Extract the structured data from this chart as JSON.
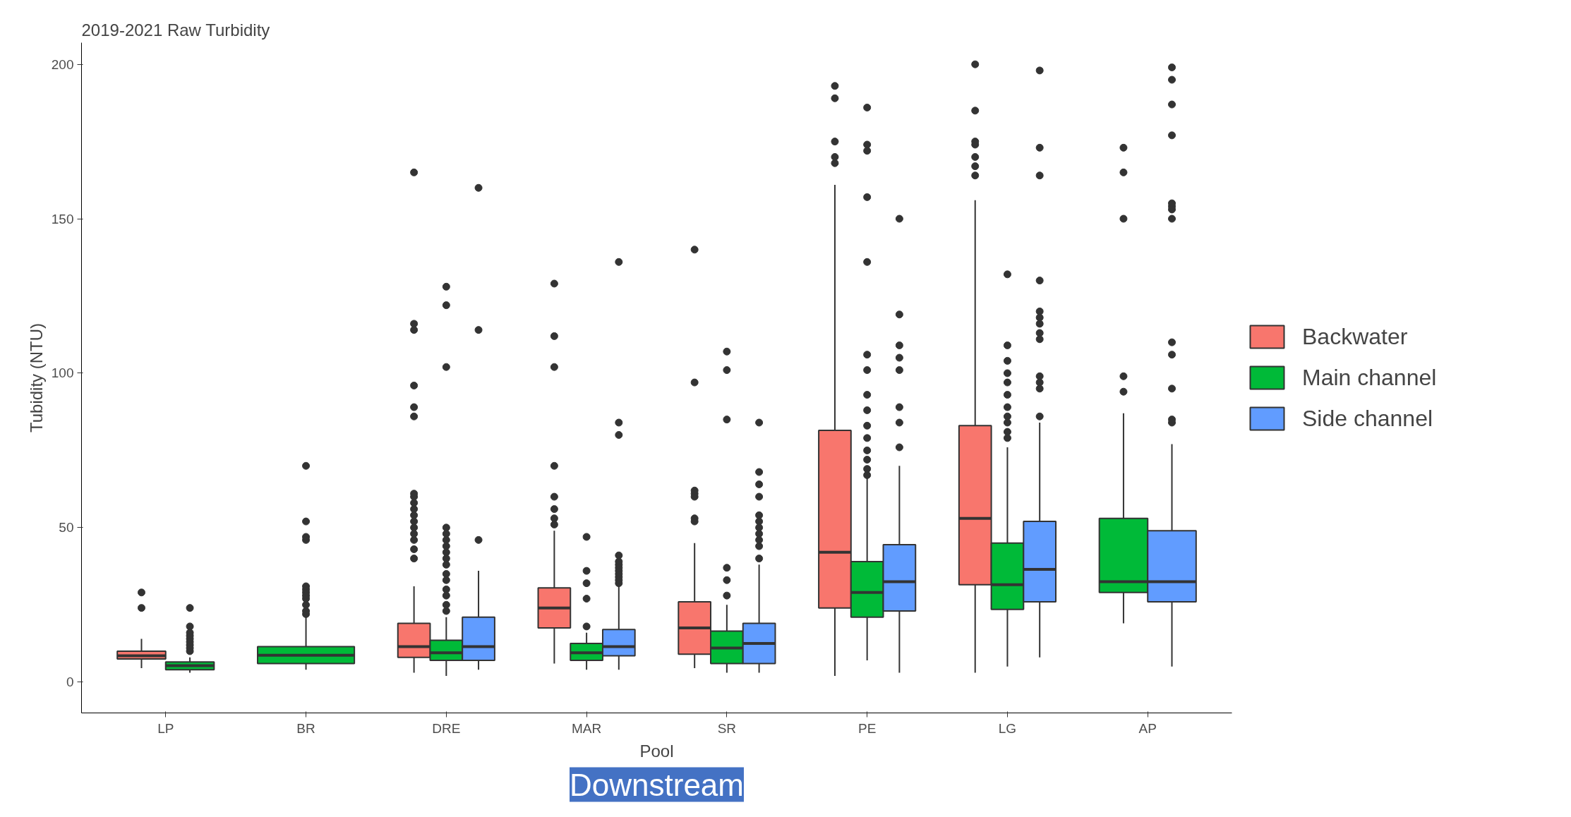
{
  "chart_data": {
    "type": "box",
    "title": "2019-2021 Raw Turbidity",
    "xlabel": "Pool",
    "ylabel": "Tubidity (NTU)",
    "categories": [
      "LP",
      "BR",
      "DRE",
      "MAR",
      "SR",
      "PE",
      "LG",
      "AP"
    ],
    "ylim": [
      -10,
      207
    ],
    "yticks": [
      0,
      50,
      100,
      150,
      200
    ],
    "grid": false,
    "legend": "right",
    "annotations": [
      "Downstream"
    ],
    "series": [
      {
        "name": "Backwater",
        "color": "#f8766d",
        "boxes": [
          {
            "low": 4.5,
            "q1": 7.5,
            "median": 8.5,
            "q3": 10,
            "high": 14,
            "outliers": [
              24,
              29
            ]
          },
          null,
          {
            "low": 3,
            "q1": 8,
            "median": 11.5,
            "q3": 19,
            "high": 31,
            "outliers": [
              40,
              43,
              46,
              48,
              50,
              52,
              54,
              56,
              58,
              60,
              61,
              86,
              89,
              96,
              114,
              116,
              165
            ]
          },
          {
            "low": 6,
            "q1": 17.5,
            "median": 24,
            "q3": 30.5,
            "high": 49,
            "outliers": [
              51,
              53,
              56,
              60,
              70,
              102,
              112,
              129
            ]
          },
          {
            "low": 4.5,
            "q1": 9,
            "median": 17.5,
            "q3": 26,
            "high": 45,
            "outliers": [
              52,
              53,
              60,
              61,
              62,
              97,
              140
            ]
          },
          {
            "low": 2,
            "q1": 24,
            "median": 42,
            "q3": 81.5,
            "high": 161,
            "outliers": [
              168,
              170,
              175,
              189,
              193
            ]
          },
          {
            "low": 3,
            "q1": 31.5,
            "median": 53,
            "q3": 83,
            "high": 156,
            "outliers": [
              164,
              167,
              170,
              174,
              175,
              185,
              200
            ]
          },
          null
        ]
      },
      {
        "name": "Main channel",
        "color": "#00ba38",
        "boxes": [
          {
            "low": 3,
            "q1": 4,
            "median": 5.3,
            "q3": 6.5,
            "high": 8,
            "outliers": [
              10,
              11,
              12,
              13,
              14,
              15,
              16,
              18,
              24
            ]
          },
          {
            "low": 4,
            "q1": 6,
            "median": 8.7,
            "q3": 11.5,
            "high": 21,
            "outliers": [
              22,
              23,
              25,
              27,
              28,
              29,
              30,
              31,
              46,
              47,
              52,
              70
            ]
          },
          {
            "low": 2,
            "q1": 7,
            "median": 9.5,
            "q3": 13.5,
            "high": 21,
            "outliers": [
              23,
              25,
              28,
              30,
              33,
              35,
              38,
              40,
              42,
              44,
              46,
              48,
              50,
              102,
              122,
              128
            ]
          },
          {
            "low": 4,
            "q1": 7,
            "median": 9.5,
            "q3": 12.5,
            "high": 16,
            "outliers": [
              18,
              27,
              32,
              36,
              47
            ]
          },
          {
            "low": 3,
            "q1": 6,
            "median": 11,
            "q3": 16.5,
            "high": 25,
            "outliers": [
              28,
              33,
              37,
              85,
              101,
              107
            ]
          },
          {
            "low": 7,
            "q1": 21,
            "median": 29,
            "q3": 39,
            "high": 66,
            "outliers": [
              67,
              69,
              72,
              75,
              79,
              83,
              88,
              93,
              101,
              106,
              136,
              157,
              172,
              174,
              186
            ]
          },
          {
            "low": 5,
            "q1": 23.5,
            "median": 31.5,
            "q3": 45,
            "high": 76,
            "outliers": [
              79,
              81,
              84,
              86,
              89,
              93,
              97,
              100,
              104,
              109,
              132
            ]
          },
          {
            "low": 19,
            "q1": 29,
            "median": 32.5,
            "q3": 53,
            "high": 87,
            "outliers": [
              94,
              99,
              150,
              165,
              173
            ]
          }
        ]
      },
      {
        "name": "Side channel",
        "color": "#619cff",
        "boxes": [
          null,
          null,
          {
            "low": 4,
            "q1": 7,
            "median": 11.5,
            "q3": 21,
            "high": 36,
            "outliers": [
              46,
              114,
              160
            ]
          },
          {
            "low": 4,
            "q1": 8.5,
            "median": 11.5,
            "q3": 17,
            "high": 31,
            "outliers": [
              32,
              33,
              34,
              35,
              36,
              37,
              38,
              39,
              41,
              80,
              84,
              136
            ]
          },
          {
            "low": 3,
            "q1": 6,
            "median": 12.5,
            "q3": 19,
            "high": 38,
            "outliers": [
              40,
              44,
              46,
              48,
              50,
              52,
              54,
              60,
              64,
              68,
              84
            ]
          },
          {
            "low": 3,
            "q1": 23,
            "median": 32.5,
            "q3": 44.5,
            "high": 70,
            "outliers": [
              76,
              84,
              89,
              101,
              105,
              109,
              119,
              150
            ]
          },
          {
            "low": 8,
            "q1": 26,
            "median": 36.5,
            "q3": 52,
            "high": 84,
            "outliers": [
              86,
              95,
              97,
              99,
              111,
              113,
              116,
              118,
              120,
              130,
              164,
              173,
              198
            ]
          },
          {
            "low": 5,
            "q1": 26,
            "median": 32.5,
            "q3": 49,
            "high": 77,
            "outliers": [
              84,
              85,
              95,
              106,
              110,
              150,
              153,
              154,
              155,
              177,
              187,
              195,
              199
            ]
          }
        ]
      }
    ]
  }
}
